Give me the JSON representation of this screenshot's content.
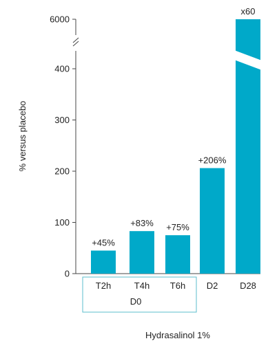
{
  "chart_data": {
    "type": "bar",
    "categories": [
      "T2h",
      "T4h",
      "T6h",
      "D2",
      "D28"
    ],
    "values": [
      45,
      83,
      75,
      206,
      6000
    ],
    "data_labels": [
      "+45%",
      "+83%",
      "+75%",
      "+206%",
      "x60"
    ],
    "group_label": "D0",
    "grouped_categories": [
      "T2h",
      "T4h",
      "T6h"
    ],
    "ylabel": "% versus placebo",
    "xlabel": "Hydrasalinol 1%",
    "y_ticks": [
      "0",
      "100",
      "200",
      "300",
      "400",
      "6000"
    ],
    "y_tick_values": [
      0,
      100,
      200,
      300,
      400,
      6000
    ],
    "axis_break": "between 400 and 6000",
    "ylim": [
      0,
      6000
    ],
    "bar_color": "#00a9c9",
    "group_box_color": "#5bbccd",
    "grid": false
  }
}
